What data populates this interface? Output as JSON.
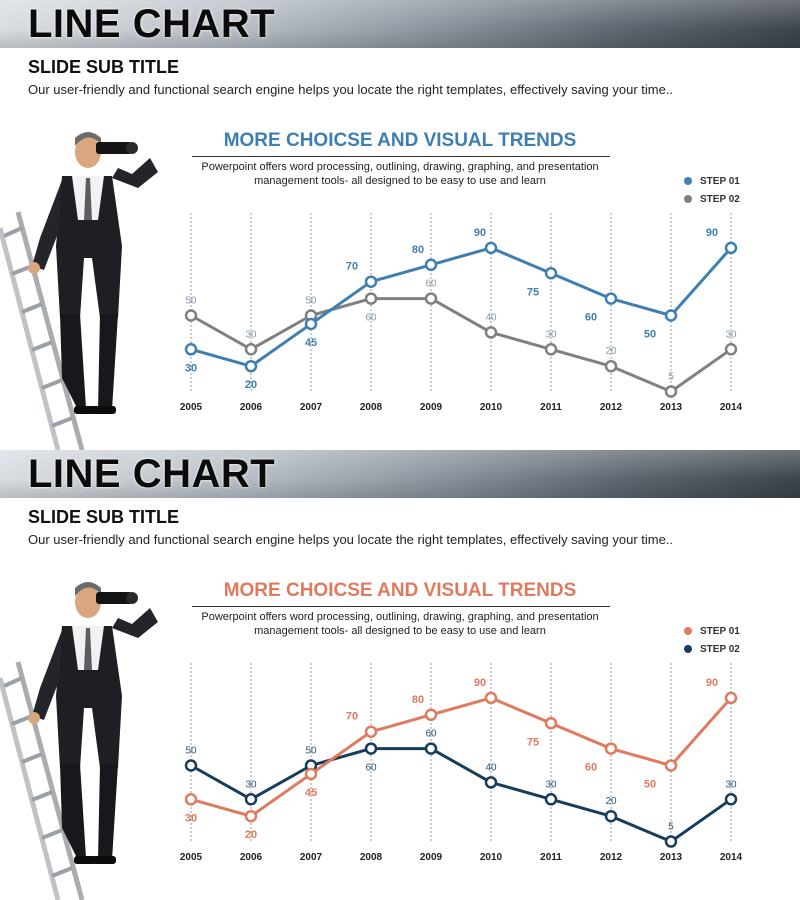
{
  "slides": [
    {
      "header": {
        "title": "LINE CHART",
        "subtitle": "SLIDE SUB TITLE",
        "description": "Our user-friendly and functional search engine helps you locate the right templates, effectively saving your time.."
      },
      "chart": {
        "heading": "MORE CHOICSE AND VISUAL TRENDS",
        "subheading_line1": "Powerpoint offers word processing, outlining, drawing, graphing, and presentation",
        "subheading_line2": "management tools- all designed to be easy to use and learn"
      },
      "colors": {
        "accent": "#3e7fb3",
        "step1": "#3e7fb3",
        "step2": "#808080",
        "step2_label": "#8a9aa8"
      },
      "chart_data": {
        "type": "line",
        "title": "MORE CHOICSE AND VISUAL TRENDS",
        "categories": [
          "2005",
          "2006",
          "2007",
          "2008",
          "2009",
          "2010",
          "2011",
          "2012",
          "2013",
          "2014"
        ],
        "series": [
          {
            "name": "STEP 01",
            "values": [
              30,
              20,
              45,
              70,
              80,
              90,
              75,
              60,
              50,
              90
            ]
          },
          {
            "name": "STEP 02",
            "values": [
              50,
              30,
              50,
              60,
              60,
              40,
              30,
              20,
              5,
              30
            ]
          }
        ],
        "ylim": [
          0,
          100
        ],
        "grid": "vertical-dashed",
        "legend": "top-right"
      }
    },
    {
      "header": {
        "title": "LINE CHART",
        "subtitle": "SLIDE SUB TITLE",
        "description": "Our user-friendly and functional search engine helps you locate the right templates, effectively saving your time.."
      },
      "chart": {
        "heading": "MORE CHOICSE AND VISUAL TRENDS",
        "subheading_line1": "Powerpoint offers word processing, outlining, drawing, graphing, and presentation",
        "subheading_line2": "management tools- all designed to be easy to use and learn"
      },
      "colors": {
        "accent": "#e07a5f",
        "step1": "#e07a5f",
        "step2": "#173d5c",
        "step2_label": "#2e5573"
      },
      "chart_data": {
        "type": "line",
        "title": "MORE CHOICSE AND VISUAL TRENDS",
        "categories": [
          "2005",
          "2006",
          "2007",
          "2008",
          "2009",
          "2010",
          "2011",
          "2012",
          "2013",
          "2014"
        ],
        "series": [
          {
            "name": "STEP 01",
            "values": [
              30,
              20,
              45,
              70,
              80,
              90,
              75,
              60,
              50,
              90
            ]
          },
          {
            "name": "STEP 02",
            "values": [
              50,
              30,
              50,
              60,
              60,
              40,
              30,
              20,
              5,
              30
            ]
          }
        ],
        "ylim": [
          0,
          100
        ],
        "grid": "vertical-dashed",
        "legend": "top-right"
      }
    }
  ]
}
